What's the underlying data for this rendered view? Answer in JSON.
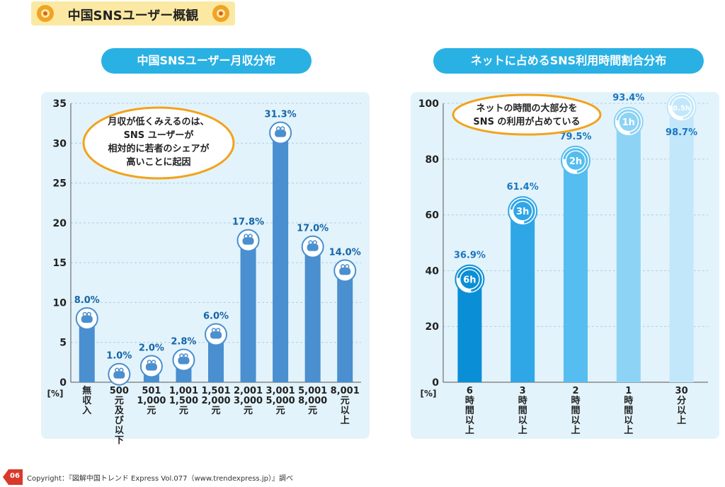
{
  "header": {
    "title": "中国SNSユーザー概観",
    "accent": "#fbe9a3"
  },
  "footer": {
    "page": "06",
    "copyright": "Copyright：『図解中国トレンド Express Vol.077（www.trendexpress.jp）』調べ"
  },
  "colors": {
    "pill": "#2ab1e4",
    "panel": "#e3f3fb",
    "bar1": "#4a8fcf",
    "bubble_border": "#f2a31b"
  },
  "chart_data": [
    {
      "type": "bar",
      "title": "中国SNSユーザー月収分布",
      "unit_label": "[%]",
      "ylim": [
        0,
        35
      ],
      "yticks": [
        0,
        5,
        10,
        15,
        20,
        25,
        30,
        35
      ],
      "categories": [
        "無収入",
        "500元及び以下",
        "501-1,000元",
        "1,001-1,500元",
        "1,501-2,000元",
        "2,001-3,000元",
        "3,001-5,000元",
        "5,001-8,000元",
        "8,001元以上"
      ],
      "category_labels": [
        [
          "無",
          "収",
          "入"
        ],
        [
          "500",
          "元",
          "及",
          "び",
          "以",
          "下"
        ],
        [
          "501",
          "1,000",
          "元"
        ],
        [
          "1,001",
          "1,500",
          "元"
        ],
        [
          "1,501",
          "2,000",
          "元"
        ],
        [
          "2,001",
          "3,000",
          "元"
        ],
        [
          "3,001",
          "5,000",
          "元"
        ],
        [
          "5,001",
          "8,000",
          "元"
        ],
        [
          "8,001",
          "元",
          "以",
          "上"
        ]
      ],
      "values": [
        8.0,
        1.0,
        2.0,
        2.8,
        6.0,
        17.8,
        31.3,
        17.0,
        14.0
      ],
      "labels": [
        "8.0%",
        "1.0%",
        "2.0%",
        "2.8%",
        "6.0%",
        "17.8%",
        "31.3%",
        "17.0%",
        "14.0%"
      ],
      "grid": true,
      "annotation": [
        "月収が低くみえるのは、",
        "SNS ユーザーが",
        "相対的に若者のシェアが",
        "高いことに起因"
      ]
    },
    {
      "type": "bar",
      "title": "ネットに占めるSNS利用時間割合分布",
      "unit_label": "[%]",
      "ylim": [
        0,
        100
      ],
      "yticks": [
        0,
        20,
        40,
        60,
        80,
        100
      ],
      "categories": [
        "6時間以上",
        "3時間以上",
        "2時間以上",
        "1時間以上",
        "30分以上"
      ],
      "category_labels": [
        [
          "6",
          "時",
          "間",
          "以",
          "上"
        ],
        [
          "3",
          "時",
          "間",
          "以",
          "上"
        ],
        [
          "2",
          "時",
          "間",
          "以",
          "上"
        ],
        [
          "1",
          "時",
          "間",
          "以",
          "上"
        ],
        [
          "30",
          "分",
          "以",
          "上"
        ]
      ],
      "values": [
        36.9,
        61.4,
        79.5,
        93.4,
        98.7
      ],
      "labels": [
        "36.9%",
        "61.4%",
        "79.5%",
        "93.4%",
        "98.7%"
      ],
      "icons": [
        "6h",
        "3h",
        "2h",
        "1h",
        "0.5h"
      ],
      "bar_colors": [
        "#0a8fd6",
        "#2fa6e6",
        "#55bdef",
        "#8dd3f5",
        "#c2e7fa"
      ],
      "grid": true,
      "annotation": [
        "ネットの時間の大部分を",
        "SNS の利用が占めている"
      ]
    }
  ]
}
